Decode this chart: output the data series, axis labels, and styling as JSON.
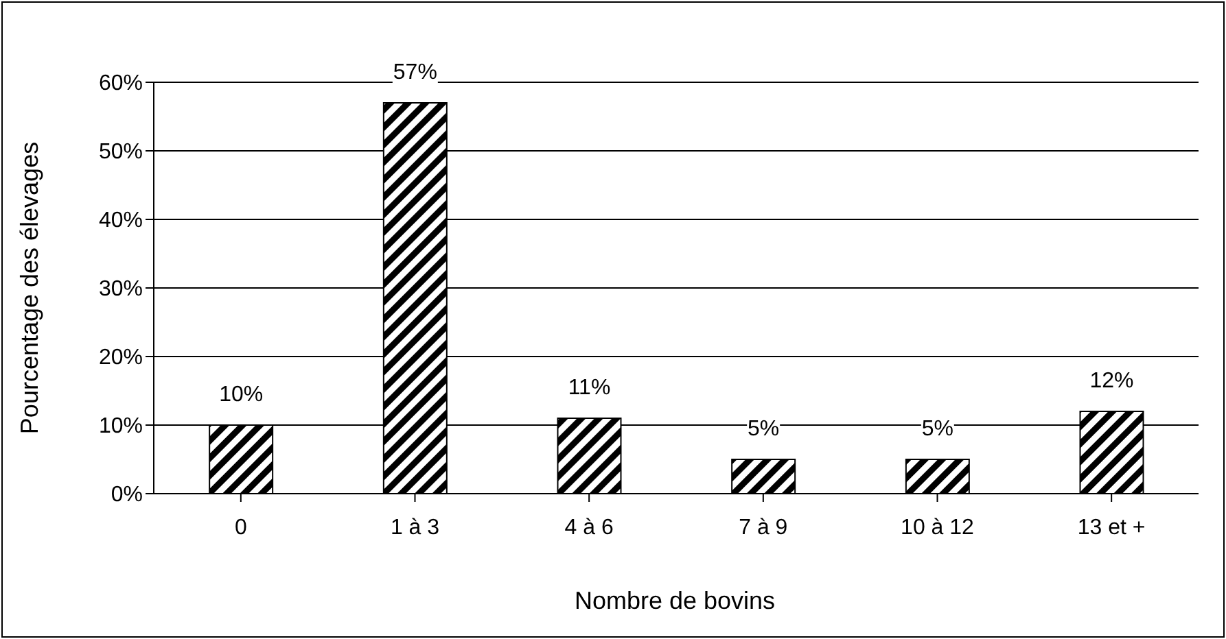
{
  "chart_data": {
    "type": "bar",
    "xlabel": "Nombre de bovins",
    "ylabel": "Pourcentage des élevages",
    "categories": [
      "0",
      "1 à 3",
      "4 à 6",
      "7 à 9",
      "10 à 12",
      "13 et +"
    ],
    "values": [
      10,
      57,
      11,
      5,
      5,
      12
    ],
    "value_labels": [
      "10%",
      "57%",
      "11%",
      "5%",
      "5%",
      "12%"
    ],
    "color": "#000000",
    "ylim": [
      0,
      60
    ],
    "yticks": [
      {
        "value": 0,
        "label": "0%"
      },
      {
        "value": 10,
        "label": "10%"
      },
      {
        "value": 20,
        "label": "20%"
      },
      {
        "value": 30,
        "label": "30%"
      },
      {
        "value": 40,
        "label": "40%"
      },
      {
        "value": 50,
        "label": "50%"
      },
      {
        "value": 60,
        "label": "60%"
      }
    ],
    "grid": "y",
    "legend": false
  }
}
